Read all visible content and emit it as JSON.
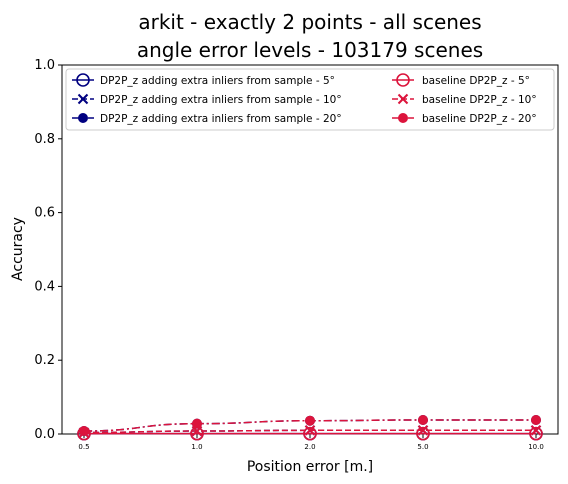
{
  "chart_data": {
    "type": "line",
    "title_line1": "arkit - exactly 2 points - all scenes",
    "title_line2": "angle error levels - 103179 scenes",
    "xlabel": "Position error [m.]",
    "ylabel": "Accuracy",
    "categories": [
      "0.5",
      "1.0",
      "2.0",
      "5.0",
      "10.0"
    ],
    "ylim": [
      0,
      1.0
    ],
    "yticks": [
      "0.0",
      "0.2",
      "0.4",
      "0.6",
      "0.8",
      "1.0"
    ],
    "grid": false,
    "legend_position": "top",
    "series": [
      {
        "name": "DP2P_z adding extra inliers from sample - 5°",
        "color": "#000080",
        "marker": "circle-open",
        "dash": "solid",
        "values": [
          0.001,
          0.001,
          0.001,
          0.001,
          0.001
        ]
      },
      {
        "name": "DP2P_z adding extra inliers from sample - 10°",
        "color": "#000080",
        "marker": "x",
        "dash": "dashed",
        "values": [
          0.004,
          0.008,
          0.01,
          0.01,
          0.01
        ]
      },
      {
        "name": "DP2P_z adding extra inliers from sample - 20°",
        "color": "#000080",
        "marker": "dot",
        "dash": "dashdot",
        "values": [
          0.008,
          0.028,
          0.036,
          0.038,
          0.038
        ]
      },
      {
        "name": "baseline DP2P_z - 5°",
        "color": "#dc143c",
        "marker": "circle-open",
        "dash": "solid",
        "values": [
          0.001,
          0.001,
          0.001,
          0.001,
          0.001
        ]
      },
      {
        "name": "baseline DP2P_z - 10°",
        "color": "#dc143c",
        "marker": "x",
        "dash": "dashed",
        "values": [
          0.004,
          0.008,
          0.01,
          0.01,
          0.01
        ]
      },
      {
        "name": "baseline DP2P_z - 20°",
        "color": "#dc143c",
        "marker": "dot",
        "dash": "dashdot",
        "values": [
          0.008,
          0.028,
          0.036,
          0.038,
          0.038
        ]
      }
    ]
  }
}
